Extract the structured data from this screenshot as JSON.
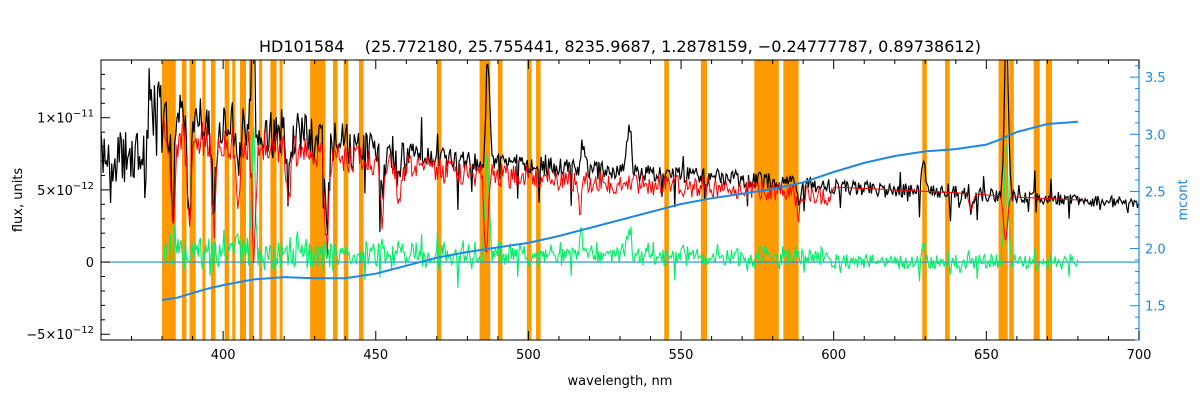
{
  "chart_data": {
    "type": "line",
    "title": "HD101584    (25.772180, 25.755441, 8235.9687, 1.2878159, −0.24777787, 0.89738612)",
    "xlabel": "wavelength, nm",
    "ylabel": "flux, units",
    "y2label": "mcont",
    "xlim": [
      360,
      700
    ],
    "ylim": [
      -5.4e-12,
      1.4e-11
    ],
    "y2lim": [
      1.2,
      3.65
    ],
    "x_ticks": [
      400,
      450,
      500,
      550,
      600,
      650,
      700
    ],
    "y_ticks": [
      {
        "value": -5e-12,
        "label": "−5×10",
        "exp": "−12"
      },
      {
        "value": 0,
        "label": "0",
        "exp": ""
      },
      {
        "value": 5e-12,
        "label": "5×10",
        "exp": "−12"
      },
      {
        "value": 1e-11,
        "label": "1×10",
        "exp": "−11"
      }
    ],
    "y2_ticks": [
      1.5,
      2.0,
      2.5,
      3.0,
      3.5
    ],
    "colors": {
      "observed": "#000000",
      "model": "#ff0000",
      "residual": "#00ee66",
      "continuum": "#1e88e5",
      "masked": "#ff9900",
      "fit": "#ffff00"
    },
    "masked_regions": [
      [
        380.0,
        384.5
      ],
      [
        386.5,
        388.0
      ],
      [
        389.0,
        391.0
      ],
      [
        393.2,
        394.2
      ],
      [
        396.0,
        397.5
      ],
      [
        400.5,
        402.0
      ],
      [
        403.0,
        404.0
      ],
      [
        405.5,
        407.5
      ],
      [
        408.5,
        410.0
      ],
      [
        411.8,
        412.8
      ],
      [
        415.5,
        417.5
      ],
      [
        418.5,
        419.5
      ],
      [
        428.5,
        433.5
      ],
      [
        436.0,
        437.5
      ],
      [
        439.5,
        441.0
      ],
      [
        444.5,
        446.0
      ],
      [
        470.0,
        471.5
      ],
      [
        484.0,
        487.5
      ],
      [
        490.0,
        491.5
      ],
      [
        499.5,
        501.0
      ],
      [
        502.5,
        504.0
      ],
      [
        544.5,
        546.0
      ],
      [
        556.5,
        558.5
      ],
      [
        574.0,
        582.0
      ],
      [
        583.5,
        588.5
      ],
      [
        629.0,
        630.5
      ],
      [
        636.5,
        638.0
      ],
      [
        654.0,
        657.0
      ],
      [
        657.5,
        659.0
      ],
      [
        665.5,
        667.5
      ],
      [
        669.5,
        671.5
      ]
    ],
    "continuum_curve": {
      "x": [
        380,
        385,
        390,
        395,
        400,
        410,
        420,
        430,
        440,
        450,
        460,
        470,
        480,
        490,
        500,
        510,
        520,
        530,
        540,
        550,
        560,
        570,
        575,
        580,
        590,
        600,
        610,
        620,
        630,
        640,
        650,
        655,
        660,
        670,
        680
      ],
      "y": [
        1.55,
        1.57,
        1.61,
        1.65,
        1.68,
        1.73,
        1.75,
        1.74,
        1.74,
        1.78,
        1.85,
        1.92,
        1.97,
        2.01,
        2.05,
        2.11,
        2.18,
        2.25,
        2.32,
        2.39,
        2.44,
        2.48,
        2.5,
        2.52,
        2.58,
        2.67,
        2.75,
        2.81,
        2.85,
        2.87,
        2.91,
        2.96,
        3.02,
        3.09,
        3.11
      ]
    },
    "model_envelope": {
      "x": [
        380,
        390,
        400,
        410,
        420,
        430,
        440,
        450,
        460,
        470,
        480,
        490,
        500,
        520,
        540,
        560,
        580,
        600,
        620,
        640,
        660,
        680,
        700
      ],
      "y": [
        1e-11,
        9.8e-12,
        9.5e-12,
        9.3e-12,
        9e-12,
        8.6e-12,
        8.2e-12,
        7.9e-12,
        7.5e-12,
        7.3e-12,
        7e-12,
        6.9e-12,
        6.7e-12,
        6.4e-12,
        6.1e-12,
        5.9e-12,
        5.6e-12,
        5.2e-12,
        5e-12,
        4.8e-12,
        4.5e-12,
        4.3e-12,
        4.1e-12
      ]
    },
    "absorption_lines": [
      {
        "x": 383.5,
        "depth": 0.7
      },
      {
        "x": 388.9,
        "depth": 0.78
      },
      {
        "x": 397.0,
        "depth": 0.72
      },
      {
        "x": 410.2,
        "depth": 0.95
      },
      {
        "x": 434.0,
        "depth": 0.9
      },
      {
        "x": 486.1,
        "depth": 0.85
      },
      {
        "x": 656.3,
        "depth": 0.8
      },
      {
        "x": 405.0,
        "depth": 0.45
      },
      {
        "x": 421.5,
        "depth": 0.5
      },
      {
        "x": 452.0,
        "depth": 0.55
      },
      {
        "x": 457.5,
        "depth": 0.4
      },
      {
        "x": 517.0,
        "depth": 0.35
      },
      {
        "x": 588.5,
        "depth": 0.3
      },
      {
        "x": 645.0,
        "depth": 0.28
      }
    ],
    "emission_lines": [
      {
        "x": 410.0,
        "height": 1.3e-11
      },
      {
        "x": 486.5,
        "height": 1.1e-11
      },
      {
        "x": 517.5,
        "height": 3e-12
      },
      {
        "x": 533.0,
        "height": 3.5e-12
      },
      {
        "x": 656.5,
        "height": 1.5e-11
      },
      {
        "x": 629.5,
        "height": 2e-12
      }
    ]
  }
}
